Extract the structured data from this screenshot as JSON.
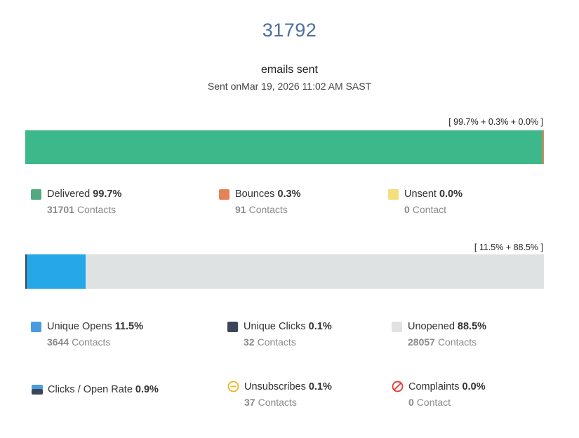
{
  "header": {
    "total": "31792",
    "label": "emails sent",
    "sent_on": "Sent onMar 19, 2026 11:02 AM SAST"
  },
  "delivery_bar": {
    "caption": "[ 99.7% + 0.3% + 0.0% ]",
    "segments": [
      {
        "name": "Delivered",
        "fraction": 0.997,
        "color": "#3db88a"
      },
      {
        "name": "Bounces",
        "fraction": 0.003,
        "color": "#e4834f"
      },
      {
        "name": "Unsent",
        "fraction": 0.0,
        "color": "#f0de73"
      }
    ]
  },
  "delivery_legend": [
    {
      "label": "Delivered",
      "pct": "99.7%",
      "count": "31701",
      "unit": "Contacts",
      "color": "#54a882"
    },
    {
      "label": "Bounces",
      "pct": "0.3%",
      "count": "91",
      "unit": "Contacts",
      "color": "#e4835a"
    },
    {
      "label": "Unsent",
      "pct": "0.0%",
      "count": "0",
      "unit": "Contact",
      "color": "#f3df7d"
    }
  ],
  "engagement_bar": {
    "caption": "[ 11.5% + 88.5% ]",
    "segments": [
      {
        "name": "Unique Clicks",
        "fraction": 0.001,
        "color": "#3c4658"
      },
      {
        "name": "Unique Opens",
        "fraction": 0.114,
        "color": "#26a8e8"
      },
      {
        "name": "Unopened",
        "fraction": 0.885,
        "color": "#dfe2e3"
      }
    ]
  },
  "engagement_legend": [
    {
      "label": "Unique Opens",
      "pct": "11.5%",
      "count": "3644",
      "unit": "Contacts",
      "color": "#4a9ce0"
    },
    {
      "label": "Unique Clicks",
      "pct": "0.1%",
      "count": "32",
      "unit": "Contacts",
      "color": "#3c4658"
    },
    {
      "label": "Unopened",
      "pct": "88.5%",
      "count": "28057",
      "unit": "Contacts",
      "color": "#dfe1e2"
    }
  ],
  "other_metrics": [
    {
      "label": "Clicks / Open Rate",
      "pct": "0.9%",
      "icon": "clicks-open-rate-icon"
    },
    {
      "label": "Unsubscribes",
      "pct": "0.1%",
      "count": "37",
      "unit": "Contacts",
      "icon": "unsubscribe-icon",
      "color": "#e9b420"
    },
    {
      "label": "Complaints",
      "pct": "0.0%",
      "count": "0",
      "unit": "Contact",
      "icon": "complaint-icon",
      "color": "#e0443a"
    }
  ]
}
